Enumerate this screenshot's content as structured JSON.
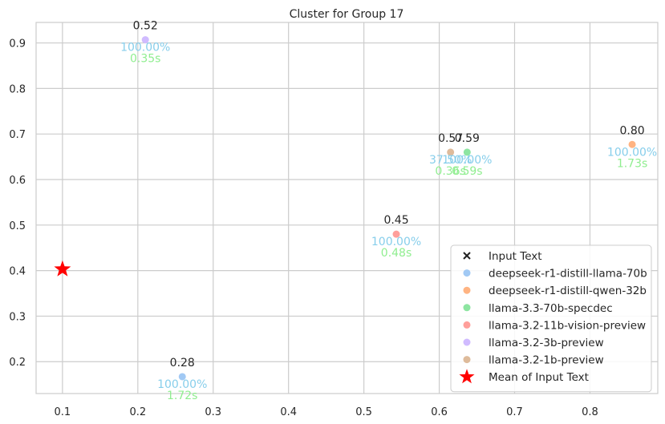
{
  "chart_data": {
    "type": "scatter",
    "title": "Cluster for Group 17",
    "xlabel": "",
    "ylabel": "",
    "xlim": [
      0.065,
      0.89
    ],
    "ylim": [
      0.13,
      0.945
    ],
    "xticks": [
      0.1,
      0.2,
      0.3,
      0.4,
      0.5,
      0.6,
      0.7,
      0.8
    ],
    "yticks": [
      0.2,
      0.3,
      0.4,
      0.5,
      0.6,
      0.7,
      0.8,
      0.9
    ],
    "grid": true,
    "legend_position": "lower-right",
    "series": [
      {
        "name": "Input Text",
        "marker": "x",
        "color": "#222222",
        "points": []
      },
      {
        "name": "deepseek-r1-distill-llama-70b",
        "marker": "circle",
        "color": "#a1c9f4",
        "points": [
          {
            "x": 0.259,
            "y": 0.167,
            "score": "0.28",
            "accuracy": "100.00%",
            "time": "1.72s"
          }
        ]
      },
      {
        "name": "deepseek-r1-distill-qwen-32b",
        "marker": "circle",
        "color": "#ffb482",
        "points": [
          {
            "x": 0.856,
            "y": 0.677,
            "score": "0.80",
            "accuracy": "100.00%",
            "time": "1.73s"
          }
        ]
      },
      {
        "name": "llama-3.3-70b-specdec",
        "marker": "circle",
        "color": "#8de5a1",
        "points": [
          {
            "x": 0.637,
            "y": 0.66,
            "score": "0.59",
            "accuracy": "100.00%",
            "time": "0.59s"
          }
        ]
      },
      {
        "name": "llama-3.2-11b-vision-preview",
        "marker": "circle",
        "color": "#ff9f9b",
        "points": [
          {
            "x": 0.543,
            "y": 0.48,
            "score": "0.45",
            "accuracy": "100.00%",
            "time": "0.48s"
          }
        ]
      },
      {
        "name": "llama-3.2-3b-preview",
        "marker": "circle",
        "color": "#d0bbff",
        "points": [
          {
            "x": 0.21,
            "y": 0.907,
            "score": "0.52",
            "accuracy": "100.00%",
            "time": "0.35s"
          }
        ]
      },
      {
        "name": "llama-3.2-1b-preview",
        "marker": "circle",
        "color": "#debb9b",
        "points": [
          {
            "x": 0.615,
            "y": 0.66,
            "score": "0.57",
            "accuracy": "37.50%",
            "time": "0.36s"
          }
        ]
      },
      {
        "name": "Mean of Input Text",
        "marker": "star",
        "color": "#ff0000",
        "points": [
          {
            "x": 0.1,
            "y": 0.403
          }
        ]
      }
    ],
    "label_colors": {
      "score": "#262626",
      "accuracy": "#87ceeb",
      "time": "#90ee90"
    }
  }
}
